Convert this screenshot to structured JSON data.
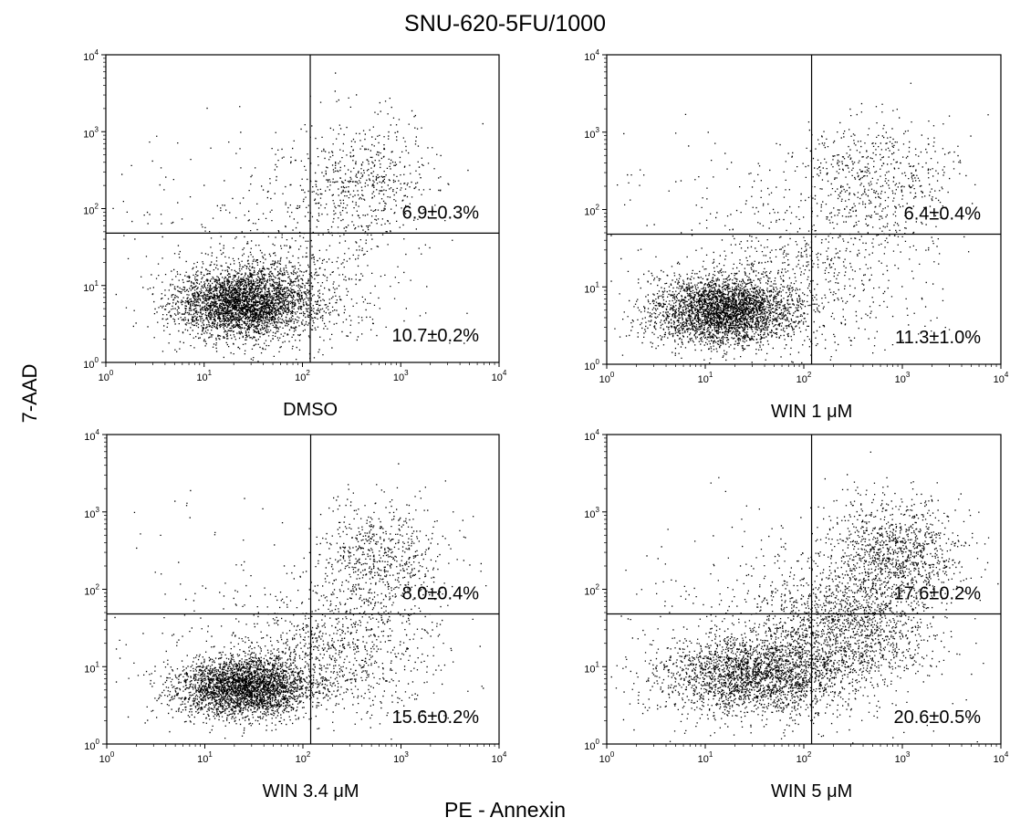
{
  "title": "SNU-620-5FU/1000",
  "y_axis_label": "7-AAD",
  "x_axis_label": "PE - Annexin",
  "chart_data": [
    {
      "type": "scatter",
      "xscale": "log",
      "yscale": "log",
      "xlim": [
        1,
        10000
      ],
      "ylim": [
        1,
        10000
      ],
      "x_ticks": [
        "10^0",
        "10^1",
        "10^2",
        "10^3",
        "10^4"
      ],
      "y_ticks": [
        "10^0",
        "10^1",
        "10^2",
        "10^3",
        "10^4"
      ],
      "xlabel": "DMSO",
      "quadrant_gates": {
        "x": 120,
        "y": 48
      },
      "annotations": {
        "upper_right": "6.9±0.3%",
        "lower_right": "10.7±0.2%"
      },
      "populations": [
        {
          "center": [
            25,
            6
          ],
          "spread_log10": [
            0.35,
            0.22
          ],
          "n": 3300
        },
        {
          "center": [
            100,
            12
          ],
          "spread_log10": [
            0.6,
            0.55
          ],
          "n": 550
        },
        {
          "center": [
            400,
            250
          ],
          "spread_log10": [
            0.35,
            0.4
          ],
          "n": 550
        },
        {
          "center": [
            30,
            30
          ],
          "spread_log10": [
            0.8,
            0.8
          ],
          "n": 220
        }
      ]
    },
    {
      "type": "scatter",
      "xscale": "log",
      "yscale": "log",
      "xlim": [
        1,
        10000
      ],
      "ylim": [
        1,
        10000
      ],
      "x_ticks": [
        "10^0",
        "10^1",
        "10^2",
        "10^3",
        "10^4"
      ],
      "y_ticks": [
        "10^0",
        "10^1",
        "10^2",
        "10^3",
        "10^4"
      ],
      "xlabel": "WIN 1 μM",
      "quadrant_gates": {
        "x": 120,
        "y": 48
      },
      "annotations": {
        "upper_right": "6.4±0.4%",
        "lower_right": "11.3±1.0%"
      },
      "populations": [
        {
          "center": [
            15,
            5
          ],
          "spread_log10": [
            0.35,
            0.22
          ],
          "n": 3200
        },
        {
          "center": [
            100,
            12
          ],
          "spread_log10": [
            0.6,
            0.55
          ],
          "n": 600
        },
        {
          "center": [
            500,
            250
          ],
          "spread_log10": [
            0.4,
            0.4
          ],
          "n": 600
        },
        {
          "center": [
            30,
            30
          ],
          "spread_log10": [
            0.8,
            0.8
          ],
          "n": 220
        }
      ]
    },
    {
      "type": "scatter",
      "xscale": "log",
      "yscale": "log",
      "xlim": [
        1,
        10000
      ],
      "ylim": [
        1,
        10000
      ],
      "x_ticks": [
        "10^0",
        "10^1",
        "10^2",
        "10^3",
        "10^4"
      ],
      "y_ticks": [
        "10^0",
        "10^1",
        "10^2",
        "10^3",
        "10^4"
      ],
      "xlabel": "WIN 3.4 μM",
      "quadrant_gates": {
        "x": 120,
        "y": 48
      },
      "annotations": {
        "upper_right": "8.0±0.4%",
        "lower_right": "15.6±0.2%"
      },
      "populations": [
        {
          "center": [
            25,
            5.5
          ],
          "spread_log10": [
            0.35,
            0.2
          ],
          "n": 3100
        },
        {
          "center": [
            200,
            15
          ],
          "spread_log10": [
            0.5,
            0.4
          ],
          "n": 800
        },
        {
          "center": [
            600,
            250
          ],
          "spread_log10": [
            0.35,
            0.4
          ],
          "n": 700
        },
        {
          "center": [
            30,
            40
          ],
          "spread_log10": [
            0.8,
            0.8
          ],
          "n": 200
        }
      ]
    },
    {
      "type": "scatter",
      "xscale": "log",
      "yscale": "log",
      "xlim": [
        1,
        10000
      ],
      "ylim": [
        1,
        10000
      ],
      "x_ticks": [
        "10^0",
        "10^1",
        "10^2",
        "10^3",
        "10^4"
      ],
      "y_ticks": [
        "10^0",
        "10^1",
        "10^2",
        "10^3",
        "10^4"
      ],
      "xlabel": "WIN 5 μM",
      "quadrant_gates": {
        "x": 120,
        "y": 48
      },
      "annotations": {
        "upper_right": "17.6±0.2%",
        "lower_right": "20.6±0.5%"
      },
      "populations": [
        {
          "center": [
            30,
            8
          ],
          "spread_log10": [
            0.45,
            0.25
          ],
          "n": 2200
        },
        {
          "center": [
            250,
            30
          ],
          "spread_log10": [
            0.45,
            0.4
          ],
          "n": 1500
        },
        {
          "center": [
            800,
            300
          ],
          "spread_log10": [
            0.35,
            0.35
          ],
          "n": 1100
        },
        {
          "center": [
            40,
            20
          ],
          "spread_log10": [
            0.9,
            0.8
          ],
          "n": 500
        }
      ]
    }
  ]
}
